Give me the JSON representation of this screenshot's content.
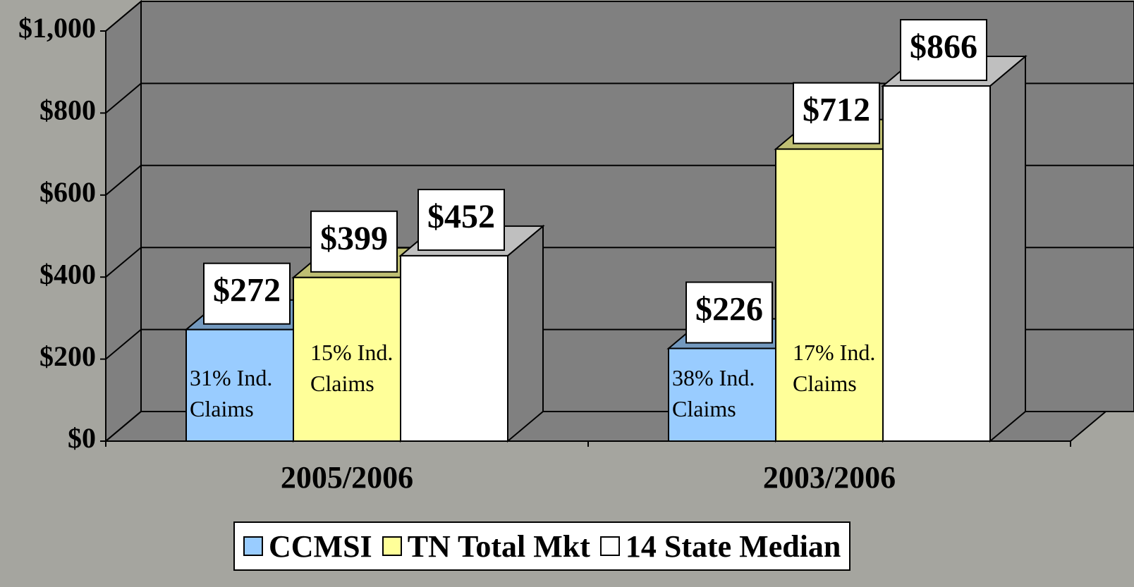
{
  "chart_data": {
    "type": "bar3d",
    "categories": [
      "2005/2006",
      "2003/2006"
    ],
    "series": [
      {
        "name": "CCMSI",
        "color": "#99ccff",
        "values": [
          272,
          226
        ],
        "value_labels": [
          "$272",
          "$226"
        ],
        "notes": [
          "31% Ind. Claims",
          "38% Ind. Claims"
        ]
      },
      {
        "name": "TN Total Mkt",
        "color": "#ffff99",
        "values": [
          399,
          712
        ],
        "value_labels": [
          "$399",
          "$712"
        ],
        "notes": [
          "15% Ind. Claims",
          "17% Ind. Claims"
        ]
      },
      {
        "name": "14 State Median",
        "color": "#ffffff",
        "values": [
          452,
          866
        ],
        "value_labels": [
          "$452",
          "$866"
        ]
      }
    ],
    "ylim": [
      0,
      1000
    ],
    "yticks": [
      {
        "value": 0,
        "label": "$0"
      },
      {
        "value": 200,
        "label": "$200"
      },
      {
        "value": 400,
        "label": "$400"
      },
      {
        "value": 600,
        "label": "$600"
      },
      {
        "value": 800,
        "label": "$800"
      },
      {
        "value": 1000,
        "label": "$1,000"
      }
    ],
    "grid": true,
    "legend": "bottom"
  }
}
